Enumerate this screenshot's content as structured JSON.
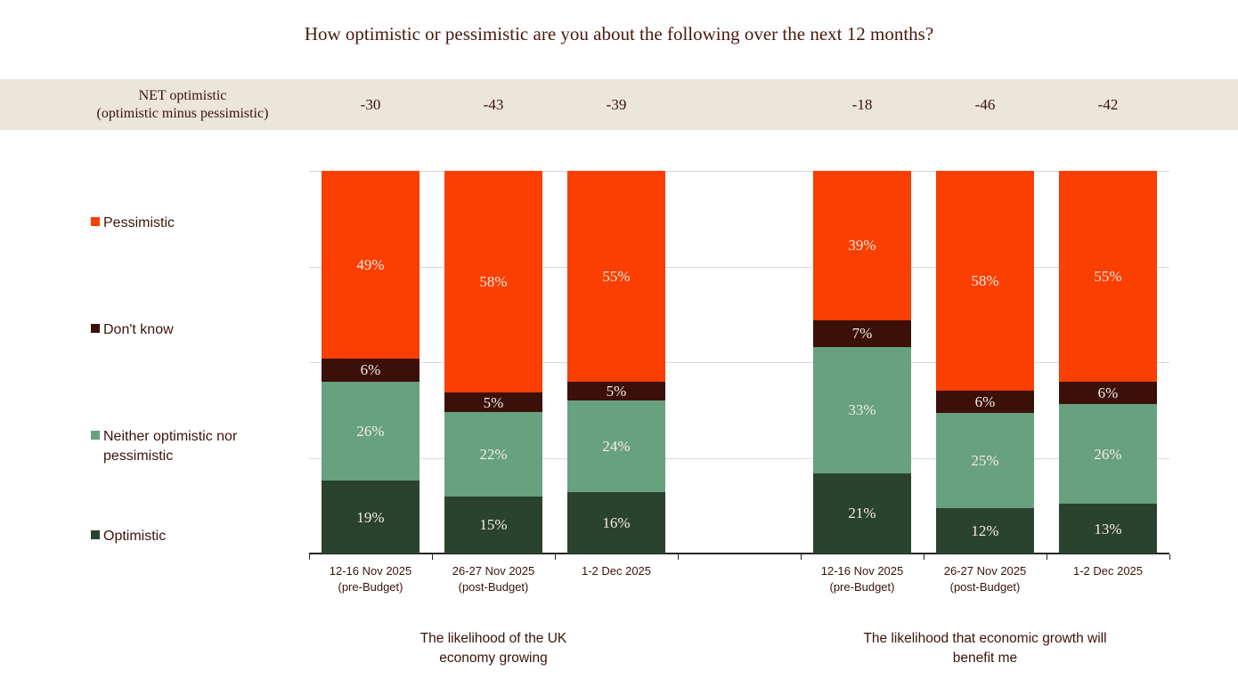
{
  "colors": {
    "pessimistic": "#fb3e01",
    "dont_know": "#3b1009",
    "neither": "#68a17d",
    "optimistic": "#2a432f",
    "band_background": "#ebe5da",
    "dark_text": "#3a1309",
    "title_text": "#481a0e",
    "percent_label_text": "#f2ede2",
    "gridline": "#d9d9d9",
    "axis": "#262626"
  },
  "chart_data": {
    "type": "bar",
    "subtype": "stacked-100-percent-column",
    "title": "How optimistic or pessimistic are you about the following over the next 12 months?",
    "ylim": [
      0,
      100
    ],
    "gridline_percents": [
      25,
      50,
      75,
      100
    ],
    "legend_position": "left",
    "legend": [
      {
        "key": "pessimistic",
        "lines": [
          "Pessimistic"
        ],
        "color": "#fb3e01"
      },
      {
        "key": "dont_know",
        "lines": [
          "Don't know"
        ],
        "color": "#3b1009"
      },
      {
        "key": "neither",
        "lines": [
          "Neither optimistic nor",
          "pessimistic"
        ],
        "color": "#68a17d"
      },
      {
        "key": "optimistic",
        "lines": [
          "Optimistic"
        ],
        "color": "#2a432f"
      }
    ],
    "stack_order_bottom_to_top": [
      "optimistic",
      "neither",
      "dont_know",
      "pessimistic"
    ],
    "net_row": {
      "label_lines": [
        "NET optimistic",
        "(optimistic minus pessimistic)"
      ],
      "values": [
        "-30",
        "-43",
        "-39",
        "-18",
        "-46",
        "-42"
      ]
    },
    "groups": [
      {
        "title_lines": [
          "The likelihood of the UK",
          "economy growing"
        ],
        "bars": [
          {
            "date_lines": [
              "12-16 Nov 2025",
              "(pre-Budget)"
            ],
            "values": {
              "optimistic": 19,
              "neither": 26,
              "dont_know": 6,
              "pessimistic": 49
            }
          },
          {
            "date_lines": [
              "26-27 Nov 2025",
              "(post-Budget)"
            ],
            "values": {
              "optimistic": 15,
              "neither": 22,
              "dont_know": 5,
              "pessimistic": 58
            }
          },
          {
            "date_lines": [
              "1-2 Dec 2025"
            ],
            "values": {
              "optimistic": 16,
              "neither": 24,
              "dont_know": 5,
              "pessimistic": 55
            }
          }
        ]
      },
      {
        "title_lines": [
          "The likelihood that economic growth will",
          "benefit me"
        ],
        "bars": [
          {
            "date_lines": [
              "12-16 Nov 2025",
              "(pre-Budget)"
            ],
            "values": {
              "optimistic": 21,
              "neither": 33,
              "dont_know": 7,
              "pessimistic": 39
            }
          },
          {
            "date_lines": [
              "26-27 Nov 2025",
              "(post-Budget)"
            ],
            "values": {
              "optimistic": 12,
              "neither": 25,
              "dont_know": 6,
              "pessimistic": 58
            }
          },
          {
            "date_lines": [
              "1-2 Dec 2025"
            ],
            "values": {
              "optimistic": 13,
              "neither": 26,
              "dont_know": 6,
              "pessimistic": 55
            }
          }
        ]
      }
    ]
  }
}
